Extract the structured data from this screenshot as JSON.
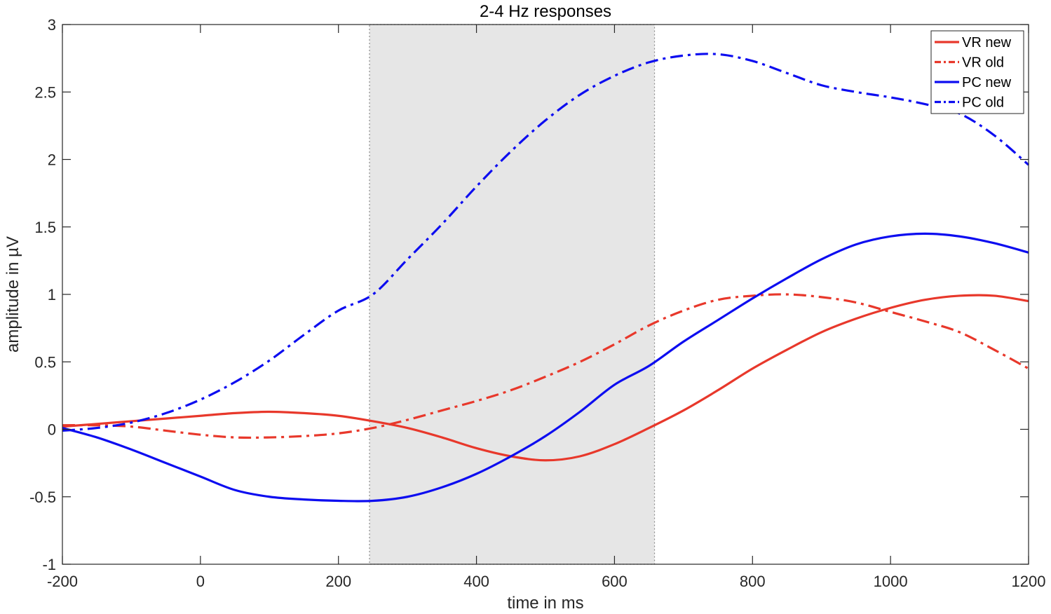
{
  "chart_data": {
    "type": "line",
    "title": "2-4 Hz responses",
    "xlabel": "time in ms",
    "ylabel": "amplitude in µV",
    "xlim": [
      -200,
      1200
    ],
    "ylim": [
      -1,
      3
    ],
    "xticks": [
      -200,
      0,
      200,
      400,
      600,
      800,
      1000,
      1200
    ],
    "yticks": [
      -1,
      -0.5,
      0,
      0.5,
      1,
      1.5,
      2,
      2.5,
      3
    ],
    "xtick_labels": [
      "-200",
      "0",
      "200",
      "400",
      "600",
      "800",
      "1000",
      "1200"
    ],
    "ytick_labels": [
      "-1",
      "-0.5",
      "0",
      "0.5",
      "1",
      "1.5",
      "2",
      "2.5",
      "3"
    ],
    "grid": false,
    "legend_position": "top-right",
    "shaded_region": {
      "x": [
        245,
        658
      ],
      "color": "#e6e6e6"
    },
    "x": [
      -200,
      -150,
      -100,
      -50,
      0,
      50,
      100,
      150,
      200,
      250,
      300,
      350,
      400,
      450,
      500,
      550,
      600,
      650,
      700,
      750,
      800,
      850,
      900,
      950,
      1000,
      1050,
      1100,
      1150,
      1200
    ],
    "series": [
      {
        "name": "VR new",
        "color": "#e8382b",
        "dash": "solid",
        "values": [
          0.02,
          0.04,
          0.06,
          0.08,
          0.1,
          0.12,
          0.13,
          0.12,
          0.1,
          0.06,
          0.01,
          -0.06,
          -0.14,
          -0.2,
          -0.23,
          -0.2,
          -0.11,
          0.01,
          0.14,
          0.29,
          0.45,
          0.59,
          0.72,
          0.82,
          0.9,
          0.96,
          0.99,
          0.99,
          0.95
        ]
      },
      {
        "name": "VR old",
        "color": "#e8382b",
        "dash": "dashdot",
        "values": [
          0.03,
          0.03,
          0.02,
          -0.01,
          -0.04,
          -0.06,
          -0.06,
          -0.05,
          -0.03,
          0.01,
          0.07,
          0.14,
          0.21,
          0.29,
          0.39,
          0.5,
          0.63,
          0.77,
          0.88,
          0.96,
          0.99,
          1.0,
          0.98,
          0.94,
          0.87,
          0.8,
          0.72,
          0.59,
          0.45
        ]
      },
      {
        "name": "PC new",
        "color": "#0d0df0",
        "dash": "solid",
        "values": [
          0.01,
          -0.06,
          -0.15,
          -0.25,
          -0.35,
          -0.45,
          -0.5,
          -0.52,
          -0.53,
          -0.53,
          -0.5,
          -0.43,
          -0.33,
          -0.2,
          -0.05,
          0.13,
          0.33,
          0.47,
          0.65,
          0.81,
          0.97,
          1.12,
          1.26,
          1.37,
          1.43,
          1.45,
          1.43,
          1.38,
          1.31
        ]
      },
      {
        "name": "PC old",
        "color": "#0d0df0",
        "dash": "dashdot",
        "values": [
          -0.01,
          0.01,
          0.05,
          0.12,
          0.22,
          0.35,
          0.51,
          0.7,
          0.88,
          1.0,
          1.26,
          1.52,
          1.8,
          2.06,
          2.29,
          2.48,
          2.62,
          2.72,
          2.77,
          2.78,
          2.73,
          2.64,
          2.55,
          2.5,
          2.46,
          2.41,
          2.34,
          2.18,
          1.96
        ]
      }
    ]
  }
}
